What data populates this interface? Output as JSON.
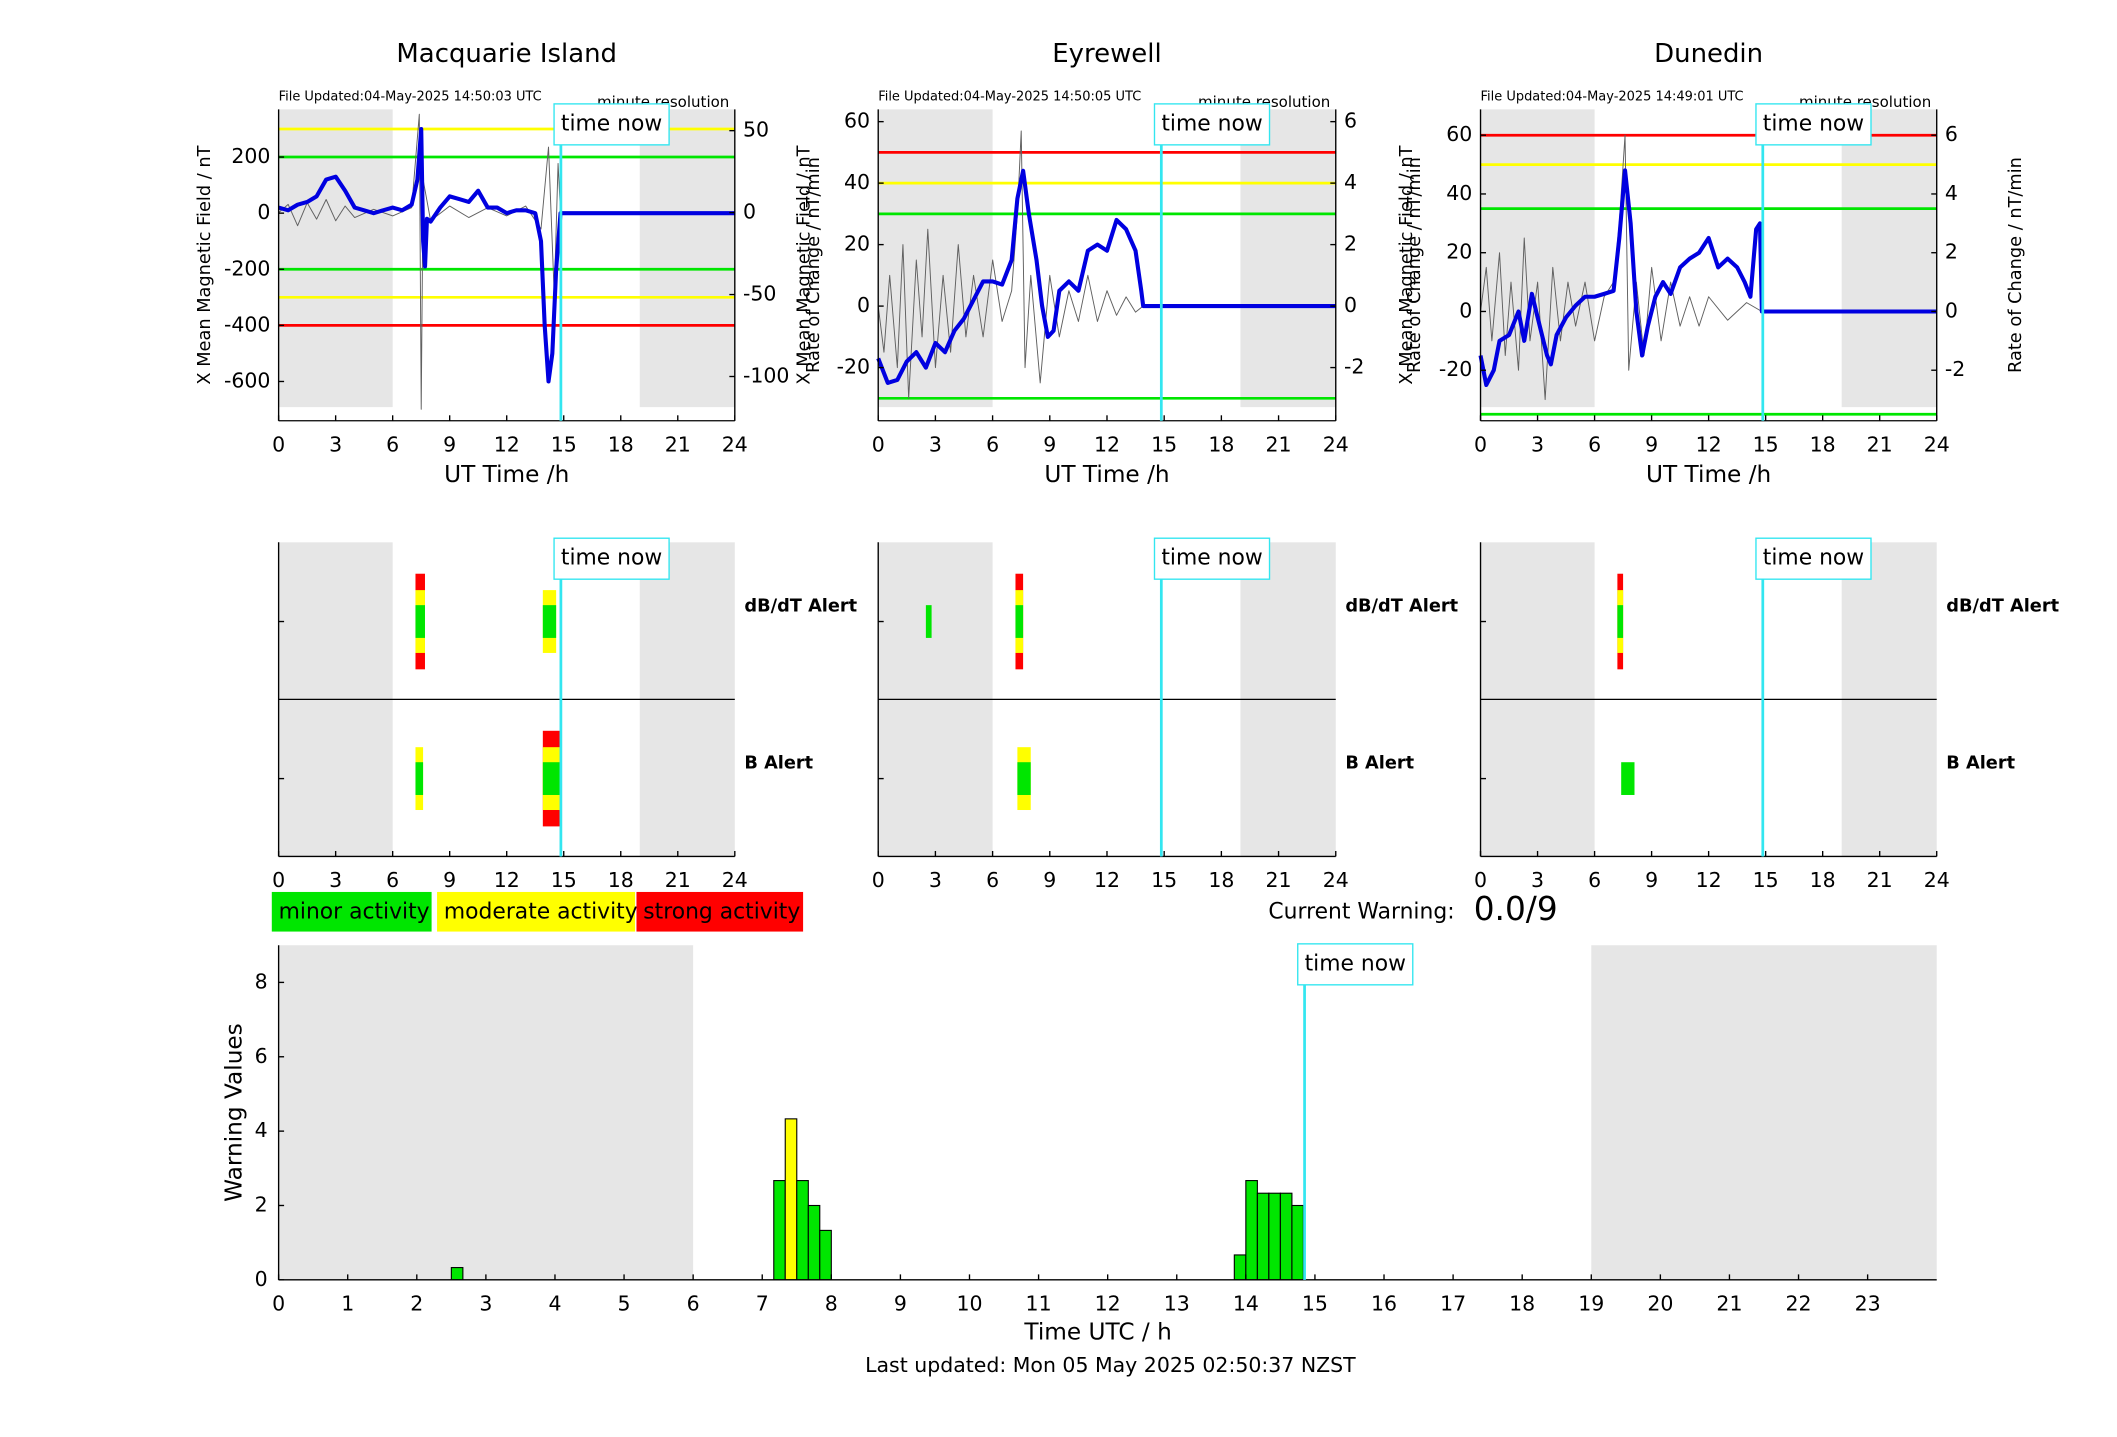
{
  "chart_data": [
    {
      "type": "line",
      "title": "Macquarie Island",
      "file_updated": "File Updated:04-May-2025 14:50:03 UTC",
      "resolution": "minute resolution",
      "ylabel": "X Mean Magnetic Field / nT",
      "y2label": "Rate of Change / nT/min",
      "xlabel": "UT Time /h",
      "xlim": [
        0,
        24
      ],
      "xticks": [
        0,
        3,
        6,
        9,
        12,
        15,
        18,
        21,
        24
      ],
      "ylim": [
        -740,
        370
      ],
      "yticks": [
        -600,
        -400,
        -200,
        0,
        200
      ],
      "y2lim": [
        -127,
        63
      ],
      "y2ticks": [
        -100,
        -50,
        0,
        50
      ],
      "shade": [
        [
          0,
          6
        ],
        [
          19,
          24
        ]
      ],
      "time_now": {
        "value": 14.85,
        "label": "time now"
      },
      "time_color": "#33e6f0",
      "thresholds": [
        {
          "value": 300,
          "color": "#ffff00"
        },
        {
          "value": 200,
          "color": "#00e600"
        },
        {
          "value": -200,
          "color": "#00e600"
        },
        {
          "value": -300,
          "color": "#ffff00"
        },
        {
          "value": -400,
          "color": "#ff0000"
        }
      ],
      "series": [
        {
          "color": "#606060",
          "axis": "y2",
          "x": [
            0,
            0.5,
            1,
            1.5,
            2,
            2.5,
            3,
            3.5,
            4,
            5,
            6,
            7,
            7.4,
            7.5,
            7.6,
            8,
            9,
            10,
            11,
            12,
            13,
            13.8,
            14.2,
            14.5,
            14.7,
            14.83
          ],
          "values": [
            0,
            5,
            -8,
            6,
            -4,
            8,
            -5,
            4,
            -3,
            2,
            -2,
            3,
            60,
            -120,
            20,
            -5,
            4,
            -3,
            3,
            -2,
            4,
            -10,
            40,
            -50,
            30,
            0
          ]
        },
        {
          "color": "#0000e0",
          "axis": "y",
          "x": [
            0,
            0.5,
            1,
            1.5,
            2,
            2.5,
            3,
            3.5,
            4,
            4.5,
            5,
            5.5,
            6,
            6.5,
            7,
            7.3,
            7.5,
            7.6,
            7.7,
            7.8,
            8,
            8.5,
            9,
            9.5,
            10,
            10.5,
            11,
            11.5,
            12,
            12.5,
            13,
            13.5,
            13.8,
            14,
            14.2,
            14.4,
            14.6,
            14.83,
            24
          ],
          "values": [
            20,
            10,
            30,
            40,
            60,
            120,
            130,
            80,
            20,
            10,
            0,
            10,
            20,
            10,
            30,
            120,
            300,
            -100,
            -190,
            -20,
            -30,
            20,
            60,
            50,
            40,
            80,
            20,
            20,
            0,
            10,
            10,
            0,
            -100,
            -400,
            -600,
            -500,
            -200,
            0,
            0
          ]
        }
      ]
    },
    {
      "type": "line",
      "title": "Eyrewell",
      "file_updated": "File Updated:04-May-2025 14:50:05 UTC",
      "resolution": "minute resolution",
      "ylabel": "X Mean Magnetic Field / nT",
      "y2label": "Rate of Change / nT/min",
      "xlabel": "UT Time /h",
      "xlim": [
        0,
        24
      ],
      "xticks": [
        0,
        3,
        6,
        9,
        12,
        15,
        18,
        21,
        24
      ],
      "ylim": [
        -37.3,
        64
      ],
      "yticks": [
        -20,
        0,
        20,
        40,
        60
      ],
      "y2lim": [
        -3.73,
        6.4
      ],
      "y2ticks": [
        -2,
        0,
        2,
        4,
        6
      ],
      "shade": [
        [
          0,
          6
        ],
        [
          19,
          24
        ]
      ],
      "time_now": {
        "value": 14.85,
        "label": "time now"
      },
      "time_color": "#33e6f0",
      "thresholds": [
        {
          "value": 50,
          "color": "#ff0000"
        },
        {
          "value": 40,
          "color": "#ffff00"
        },
        {
          "value": 30,
          "color": "#00e600"
        },
        {
          "value": -30,
          "color": "#00e600"
        }
      ],
      "series": [
        {
          "color": "#606060",
          "axis": "y2",
          "x": [
            0,
            0.3,
            0.6,
            1,
            1.3,
            1.6,
            2,
            2.3,
            2.6,
            3,
            3.4,
            3.8,
            4.2,
            4.6,
            5,
            5.5,
            6,
            6.5,
            7,
            7.3,
            7.5,
            7.7,
            8,
            8.5,
            9,
            9.5,
            10,
            10.5,
            11,
            11.5,
            12,
            12.5,
            13,
            13.5,
            13.9
          ],
          "values": [
            0,
            -1.5,
            1,
            -2,
            2,
            -3,
            1.5,
            -1,
            2.5,
            -2,
            1,
            -1.5,
            2,
            -1,
            1,
            -1,
            1.5,
            -0.5,
            0.5,
            3,
            5.7,
            -2,
            1,
            -2.5,
            1,
            -1,
            0.5,
            -0.5,
            1,
            -0.5,
            0.5,
            -0.3,
            0.3,
            -0.2,
            0
          ]
        },
        {
          "color": "#0000e0",
          "axis": "y",
          "x": [
            0,
            0.5,
            1,
            1.5,
            2,
            2.5,
            3,
            3.5,
            4,
            4.5,
            5,
            5.5,
            6,
            6.5,
            7,
            7.3,
            7.6,
            7.9,
            8.3,
            8.6,
            8.9,
            9.2,
            9.5,
            10,
            10.5,
            11,
            11.5,
            12,
            12.5,
            13,
            13.5,
            13.8,
            13.9,
            24
          ],
          "values": [
            -17,
            -25,
            -24,
            -18,
            -15,
            -20,
            -12,
            -15,
            -8,
            -4,
            2,
            8,
            8,
            7,
            15,
            35,
            44,
            30,
            15,
            0,
            -10,
            -8,
            5,
            8,
            5,
            18,
            20,
            18,
            28,
            25,
            18,
            5,
            0,
            0
          ]
        }
      ]
    },
    {
      "type": "line",
      "title": "Dunedin",
      "file_updated": "File Updated:04-May-2025 14:49:01 UTC",
      "resolution": "minute resolution",
      "ylabel": "X Mean Magnetic Field / nT",
      "y2label": "Rate of Change / nT/min",
      "xlabel": "UT Time /h",
      "xlim": [
        0,
        24
      ],
      "xticks": [
        0,
        3,
        6,
        9,
        12,
        15,
        18,
        21,
        24
      ],
      "ylim": [
        -37.2,
        68.8
      ],
      "yticks": [
        -20,
        0,
        20,
        40,
        60
      ],
      "y2lim": [
        -3.72,
        6.88
      ],
      "y2ticks": [
        -2,
        0,
        2,
        4,
        6
      ],
      "shade": [
        [
          0,
          6
        ],
        [
          19,
          24
        ]
      ],
      "time_now": {
        "value": 14.85,
        "label": "time now"
      },
      "time_color": "#33e6f0",
      "thresholds": [
        {
          "value": 60,
          "color": "#ff0000"
        },
        {
          "value": 50,
          "color": "#ffff00"
        },
        {
          "value": 35,
          "color": "#00e600"
        },
        {
          "value": -35,
          "color": "#00e600"
        }
      ],
      "series": [
        {
          "color": "#606060",
          "axis": "y2",
          "x": [
            0,
            0.3,
            0.6,
            1,
            1.3,
            1.6,
            2,
            2.3,
            2.6,
            3,
            3.4,
            3.8,
            4.2,
            4.6,
            5,
            5.5,
            6,
            6.5,
            7,
            7.3,
            7.6,
            7.8,
            8.2,
            8.6,
            9,
            9.5,
            10,
            10.5,
            11,
            11.5,
            12,
            13,
            14,
            14.8
          ],
          "values": [
            0,
            1.5,
            -1,
            2,
            -1.5,
            1,
            -2,
            2.5,
            -1,
            1,
            -3,
            1.5,
            -1,
            1,
            -0.5,
            1,
            -1,
            0.5,
            1,
            3,
            6,
            -2,
            1,
            -1.5,
            1.5,
            -1,
            1,
            -0.5,
            0.5,
            -0.5,
            0.5,
            -0.3,
            0.3,
            0
          ]
        },
        {
          "color": "#0000e0",
          "axis": "y",
          "x": [
            0,
            0.3,
            0.7,
            1,
            1.5,
            2,
            2.3,
            2.7,
            3,
            3.5,
            3.7,
            4,
            4.5,
            5,
            5.5,
            6,
            6.5,
            7,
            7.3,
            7.6,
            7.9,
            8.2,
            8.5,
            8.8,
            9.2,
            9.6,
            10,
            10.5,
            11,
            11.5,
            12,
            12.5,
            13,
            13.5,
            13.9,
            14.2,
            14.5,
            14.7,
            14.8,
            24
          ],
          "values": [
            -15,
            -25,
            -20,
            -10,
            -8,
            0,
            -10,
            6,
            -2,
            -15,
            -18,
            -8,
            -2,
            2,
            5,
            5,
            6,
            7,
            25,
            48,
            30,
            0,
            -15,
            -5,
            5,
            10,
            6,
            15,
            18,
            20,
            25,
            15,
            18,
            15,
            10,
            5,
            28,
            30,
            0,
            0
          ]
        }
      ]
    },
    {
      "type": "alert",
      "xlim": [
        0,
        24
      ],
      "xticks": [
        0,
        3,
        6,
        9,
        12,
        15,
        18,
        21,
        24
      ],
      "shade": [
        [
          0,
          6
        ],
        [
          19,
          24
        ]
      ],
      "time_now": {
        "value": 14.85,
        "label": "time now"
      },
      "time_color": "#33e6f0",
      "rows": [
        {
          "label": "dB/dT Alert",
          "color": "#000000",
          "events": [
            {
              "start": 7.2,
              "end": 7.7,
              "level": 3
            },
            {
              "start": 13.9,
              "end": 14.6,
              "level": 2
            }
          ]
        },
        {
          "label": "B Alert",
          "color": "#0000e0",
          "events": [
            {
              "start": 7.2,
              "end": 7.6,
              "level": 2
            },
            {
              "start": 13.9,
              "end": 14.8,
              "level": 3
            }
          ]
        }
      ]
    },
    {
      "type": "alert",
      "xlim": [
        0,
        24
      ],
      "xticks": [
        0,
        3,
        6,
        9,
        12,
        15,
        18,
        21,
        24
      ],
      "shade": [
        [
          0,
          6
        ],
        [
          19,
          24
        ]
      ],
      "time_now": {
        "value": 14.85,
        "label": "time now"
      },
      "time_color": "#33e6f0",
      "rows": [
        {
          "label": "dB/dT Alert",
          "color": "#000000",
          "events": [
            {
              "start": 2.5,
              "end": 2.8,
              "level": 1
            },
            {
              "start": 7.2,
              "end": 7.6,
              "level": 3
            }
          ]
        },
        {
          "label": "B Alert",
          "color": "#0000e0",
          "events": [
            {
              "start": 7.3,
              "end": 8.0,
              "level": 2
            }
          ]
        }
      ]
    },
    {
      "type": "alert",
      "xlim": [
        0,
        24
      ],
      "xticks": [
        0,
        3,
        6,
        9,
        12,
        15,
        18,
        21,
        24
      ],
      "shade": [
        [
          0,
          6
        ],
        [
          19,
          24
        ]
      ],
      "time_now": {
        "value": 14.85,
        "label": "time now"
      },
      "time_color": "#33e6f0",
      "rows": [
        {
          "label": "dB/dT Alert",
          "color": "#000000",
          "events": [
            {
              "start": 7.2,
              "end": 7.5,
              "level": 3
            }
          ]
        },
        {
          "label": "B Alert",
          "color": "#0000e0",
          "events": [
            {
              "start": 7.4,
              "end": 8.1,
              "level": 1
            }
          ]
        }
      ]
    },
    {
      "type": "histogram",
      "xlabel": "Time UTC / h",
      "ylabel": "Warning Values",
      "footer": "Last updated: Mon 05 May 2025 02:50:37 NZST",
      "xlim": [
        0,
        24
      ],
      "xticks": [
        0,
        1,
        2,
        3,
        4,
        5,
        6,
        7,
        8,
        9,
        10,
        11,
        12,
        13,
        14,
        15,
        16,
        17,
        18,
        19,
        20,
        21,
        22,
        23
      ],
      "ylim": [
        0,
        9
      ],
      "yticks": [
        0,
        2,
        4,
        6,
        8
      ],
      "shade": [
        [
          0,
          6
        ],
        [
          19,
          24
        ]
      ],
      "time_now": {
        "value": 14.85,
        "label": "time now"
      },
      "time_color": "#33e6f0",
      "bins": [
        2.5,
        2.667,
        7.167,
        7.333,
        7.5,
        7.667,
        7.833,
        8.0,
        13.833,
        14.0,
        14.167,
        14.333,
        14.5,
        14.667,
        14.833
      ],
      "values": [
        0.33,
        0,
        2.67,
        4.33,
        2.67,
        2.0,
        1.33,
        0,
        0.67,
        2.67,
        2.33,
        2.33,
        2.33,
        2.0
      ],
      "colors": [
        "#00e600",
        "#00e600",
        "#00e600",
        "#ffff00",
        "#00e600",
        "#00e600",
        "#00e600",
        "#00e600",
        "#00e600",
        "#00e600",
        "#00e600",
        "#00e600",
        "#00e600",
        "#00e600"
      ]
    }
  ],
  "legend": [
    {
      "label": "minor activity",
      "color": "#00e600"
    },
    {
      "label": "moderate activity",
      "color": "#ffff00"
    },
    {
      "label": "strong activity",
      "color": "#ff0000"
    }
  ],
  "status": {
    "label": "Current Warning:",
    "value": "0.0/9"
  }
}
